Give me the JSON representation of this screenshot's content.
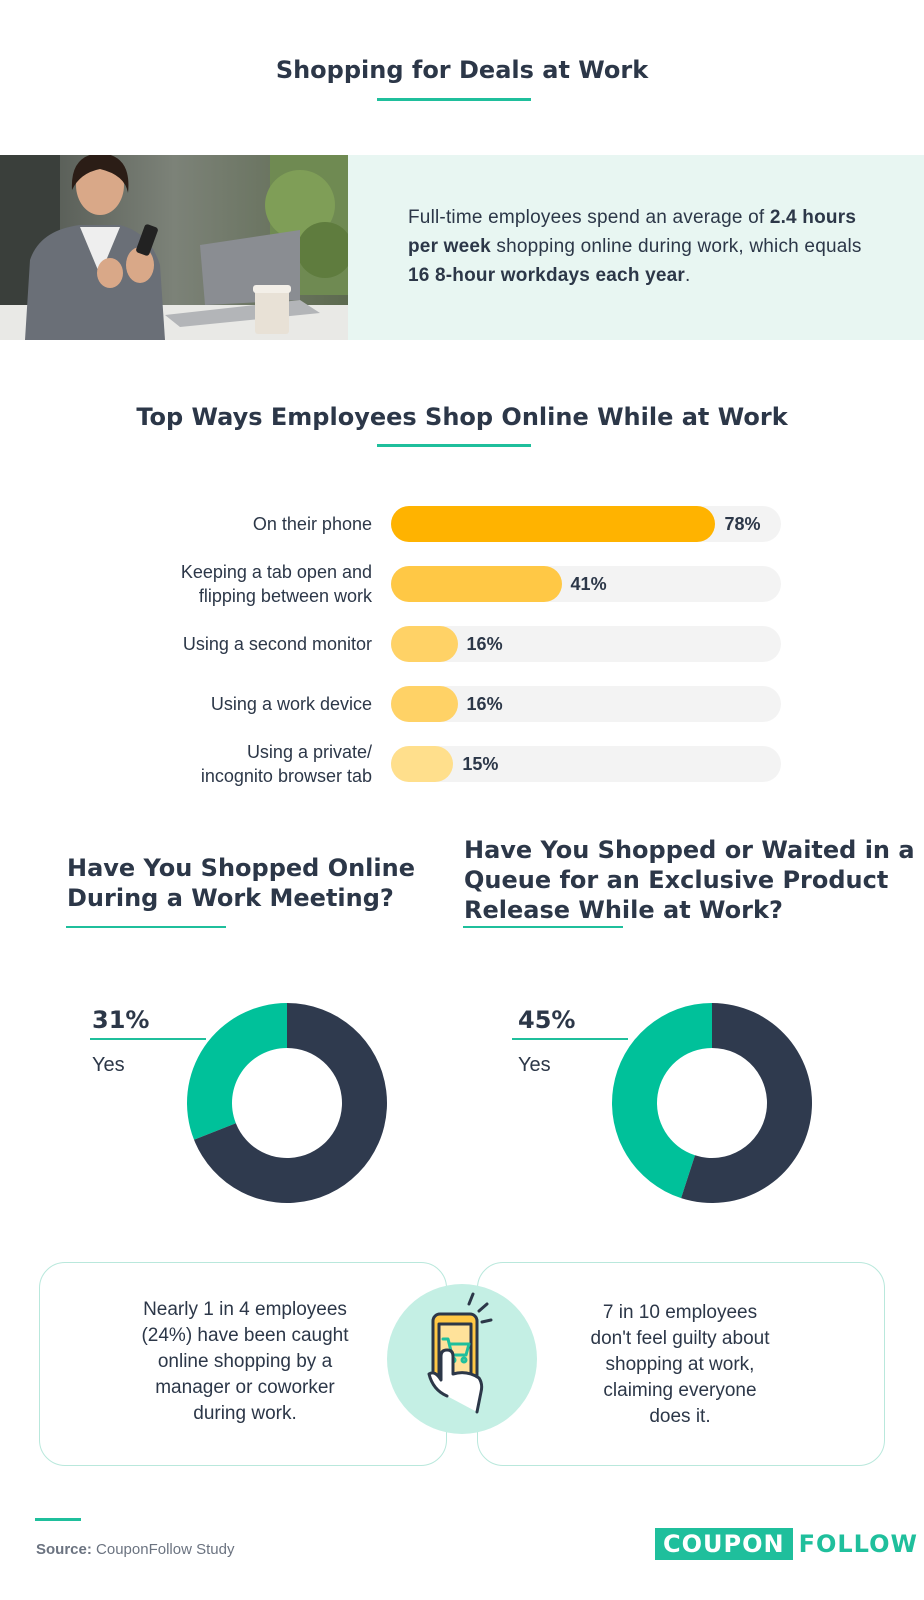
{
  "title": "Shopping for Deals at Work",
  "intro": {
    "text_a": "Full-time employees spend an average of ",
    "bold_a": "2.4 hours per week",
    "text_b": " shopping online during work, which equals ",
    "bold_b": "16 8-hour workdays each year",
    "text_c": "."
  },
  "colors": {
    "accent": "#1fbf9c",
    "navy": "#2c3748",
    "bar_strong": "#ffb300",
    "bar_mid": "#ffc845",
    "bar_light": "#ffd266",
    "bar_lightest": "#ffdf8c",
    "track": "#f3f3f3"
  },
  "chart_data": [
    {
      "type": "bar",
      "title": "Top Ways Employees Shop Online While at Work",
      "categories": [
        "On their phone",
        "Keeping a tab open and\nflipping between work",
        "Using a second monitor",
        "Using a work device",
        "Using a private/\nincognito browser tab"
      ],
      "values": [
        78,
        41,
        16,
        16,
        15
      ],
      "value_labels": [
        "78%",
        "41%",
        "16%",
        "16%",
        "15%"
      ],
      "xlim": [
        0,
        100
      ],
      "orientation": "horizontal"
    },
    {
      "type": "pie",
      "title": "Have You Shopped Online\nDuring a Work Meeting?",
      "slices": [
        {
          "label": "Yes",
          "value": 31,
          "color": "#00c19a"
        },
        {
          "label": "",
          "value": 69,
          "color": "#2f3a4e"
        }
      ],
      "callout_value": "31%",
      "callout_label": "Yes"
    },
    {
      "type": "pie",
      "title": "Have You Shopped or Waited in a\nQueue for an Exclusive Product\nRelease While at Work?",
      "slices": [
        {
          "label": "Yes",
          "value": 45,
          "color": "#00c19a"
        },
        {
          "label": "",
          "value": 55,
          "color": "#2f3a4e"
        }
      ],
      "callout_value": "45%",
      "callout_label": "Yes"
    }
  ],
  "cards": {
    "left": "Nearly 1 in 4 employees\n(24%) have been caught\nonline shopping by a\nmanager or coworker\nduring work.",
    "right": "7 in 10 employees\ndon't feel guilty about\nshopping at work,\nclaiming everyone\ndoes it.",
    "badge_icon": "phone-shopping-cart-icon"
  },
  "footer": {
    "source_label": "Source:",
    "source_text": " CouponFollow Study",
    "logo_coupon": "COUPON",
    "logo_follow": "FOLLOW"
  }
}
